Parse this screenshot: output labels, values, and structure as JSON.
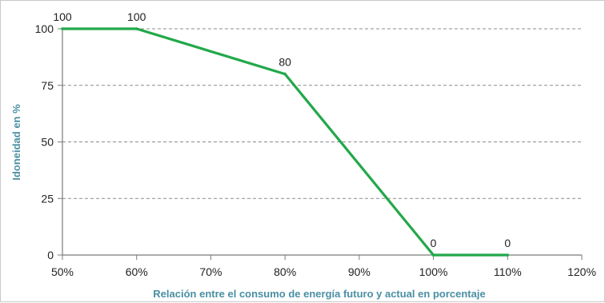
{
  "chart_data": {
    "type": "line",
    "title": "",
    "xlabel": "Relación entre el consumo  de energía futuro y actual  en porcentaje",
    "ylabel": "Idoneidad en %",
    "x_tick_labels": [
      "50%",
      "60%",
      "70%",
      "80%",
      "90%",
      "100%",
      "110%",
      "120%"
    ],
    "y_tick_labels": [
      "0",
      "25",
      "50",
      "75",
      "100"
    ],
    "xlim": [
      50,
      120
    ],
    "ylim": [
      0,
      100
    ],
    "y_grid": "dashed",
    "legend": "none",
    "series": [
      {
        "color": "#22a84a",
        "x": [
          50,
          60,
          80,
          100,
          110
        ],
        "y": [
          100,
          100,
          80,
          0,
          0
        ],
        "point_labels": [
          "100",
          "100",
          "80",
          "0",
          "0"
        ]
      }
    ]
  }
}
